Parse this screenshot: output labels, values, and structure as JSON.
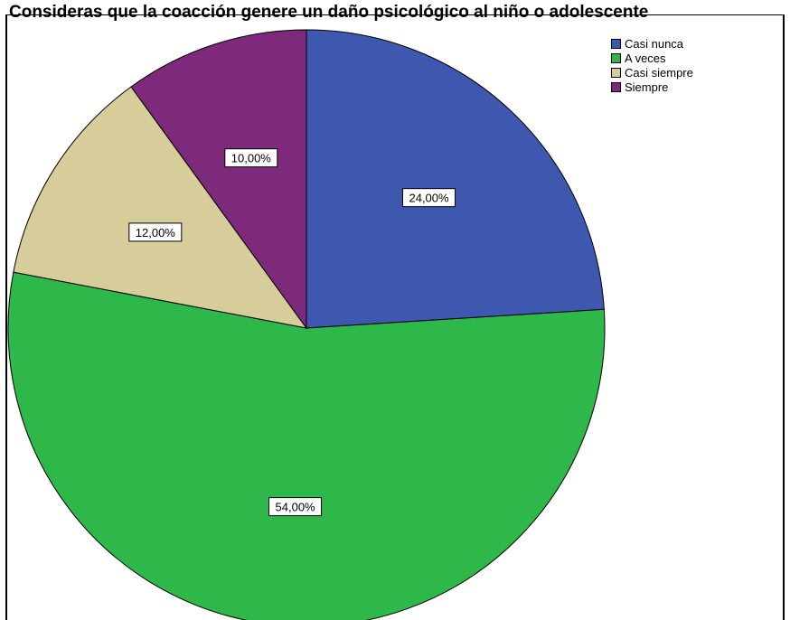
{
  "chart_data": {
    "type": "pie",
    "title": "Consideras que la coacción genere un daño psicológico al niño o adolescente",
    "categories": [
      "Casi nunca",
      "A veces",
      "Casi siempre",
      "Siempre"
    ],
    "values": [
      24.0,
      54.0,
      12.0,
      10.0
    ],
    "labels": [
      "24,00%",
      "54,00%",
      "12,00%",
      "10,00%"
    ],
    "colors": [
      "#3F58AF",
      "#2FB84A",
      "#D6CD9A",
      "#7D2A7D"
    ],
    "legend_position": "top-right",
    "start_angle": "12 o'clock",
    "direction": "clockwise"
  }
}
